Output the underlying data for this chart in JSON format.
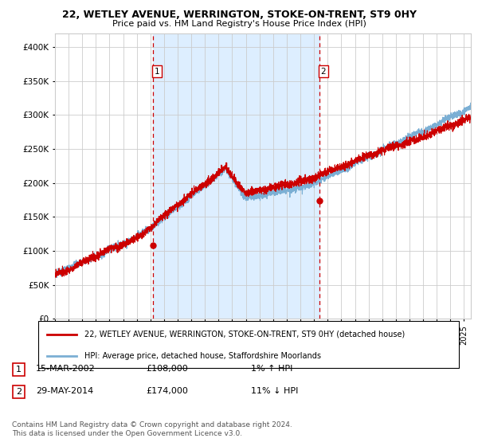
{
  "title_line1": "22, WETLEY AVENUE, WERRINGTON, STOKE-ON-TRENT, ST9 0HY",
  "title_line2": "Price paid vs. HM Land Registry's House Price Index (HPI)",
  "legend_line1": "22, WETLEY AVENUE, WERRINGTON, STOKE-ON-TRENT, ST9 0HY (detached house)",
  "legend_line2": "HPI: Average price, detached house, Staffordshire Moorlands",
  "transaction1_date": "15-MAR-2002",
  "transaction1_price": 108000,
  "transaction1_hpi": "1% ↑ HPI",
  "transaction2_date": "29-MAY-2014",
  "transaction2_price": 174000,
  "transaction2_hpi": "11% ↓ HPI",
  "copyright_text": "Contains HM Land Registry data © Crown copyright and database right 2024.\nThis data is licensed under the Open Government Licence v3.0.",
  "hpi_line_color": "#7bafd4",
  "price_line_color": "#cc0000",
  "dot_color": "#cc0000",
  "vline_color": "#cc0000",
  "shaded_bg_color": "#ddeeff",
  "grid_color": "#cccccc",
  "ylim": [
    0,
    420000
  ],
  "yticks": [
    0,
    50000,
    100000,
    150000,
    200000,
    250000,
    300000,
    350000,
    400000
  ],
  "xlim_start": 1995.0,
  "xlim_end": 2025.5,
  "transaction1_x": 2002.2,
  "transaction2_x": 2014.4
}
